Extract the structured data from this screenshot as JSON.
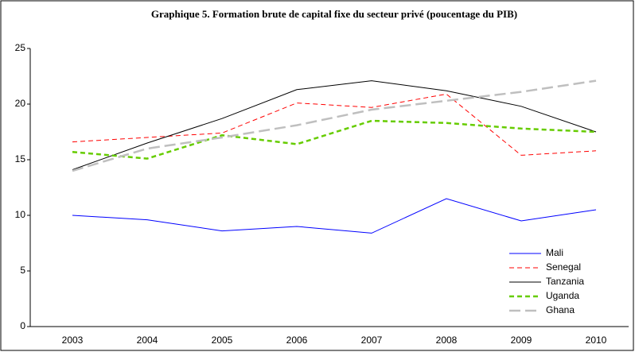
{
  "chart_data": {
    "type": "line",
    "title": "Graphique 5. Formation brute de capital fixe du secteur privé (poucentage du PIB)",
    "categories": [
      "2003",
      "2004",
      "2005",
      "2006",
      "2007",
      "2008",
      "2009",
      "2010"
    ],
    "series": [
      {
        "name": "Mali",
        "color": "#0000ff",
        "dash": "none",
        "width": 1,
        "values": [
          10,
          9.6,
          8.6,
          9.0,
          8.4,
          11.5,
          9.5,
          10.5
        ]
      },
      {
        "name": "Senegal",
        "color": "#ff0000",
        "dash": "6,4",
        "width": 1,
        "values": [
          16.6,
          17.0,
          17.4,
          20.1,
          19.7,
          20.9,
          15.4,
          15.8
        ]
      },
      {
        "name": "Tanzania",
        "color": "#000000",
        "dash": "none",
        "width": 1,
        "values": [
          14.1,
          16.5,
          18.7,
          21.3,
          22.1,
          21.2,
          19.8,
          17.5
        ]
      },
      {
        "name": "Uganda",
        "color": "#66cc00",
        "dash": "6,4",
        "width": 2.5,
        "values": [
          15.7,
          15.1,
          17.2,
          16.4,
          18.5,
          18.3,
          17.8,
          17.5
        ]
      },
      {
        "name": "Ghana",
        "color": "#bfbfbf",
        "dash": "14,6",
        "width": 2.5,
        "values": [
          14.0,
          16.0,
          17.0,
          18.1,
          19.5,
          20.3,
          21.1,
          22.1
        ]
      }
    ],
    "ylim": [
      0,
      25
    ],
    "yticks": [
      0,
      5,
      10,
      15,
      20,
      25
    ],
    "grid": false,
    "legend": "bottom-right"
  }
}
